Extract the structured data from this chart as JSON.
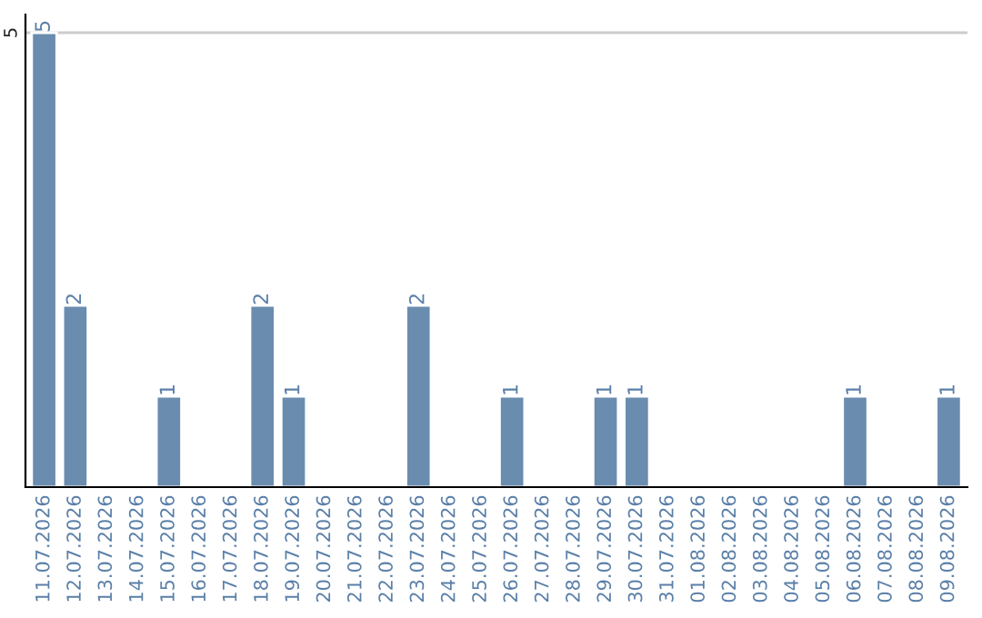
{
  "chart_data": {
    "type": "bar",
    "categories": [
      "11.07.2026",
      "12.07.2026",
      "13.07.2026",
      "14.07.2026",
      "15.07.2026",
      "16.07.2026",
      "17.07.2026",
      "18.07.2026",
      "19.07.2026",
      "20.07.2026",
      "21.07.2026",
      "22.07.2026",
      "23.07.2026",
      "24.07.2026",
      "25.07.2026",
      "26.07.2026",
      "27.07.2026",
      "28.07.2026",
      "29.07.2026",
      "30.07.2026",
      "31.07.2026",
      "01.08.2026",
      "02.08.2026",
      "03.08.2026",
      "04.08.2026",
      "05.08.2026",
      "06.08.2026",
      "07.08.2026",
      "08.08.2026",
      "09.08.2026"
    ],
    "values": [
      5,
      2,
      null,
      null,
      1,
      null,
      null,
      2,
      1,
      null,
      null,
      null,
      2,
      null,
      null,
      1,
      null,
      null,
      1,
      1,
      null,
      null,
      null,
      null,
      null,
      null,
      1,
      null,
      null,
      1
    ],
    "value_labels": [
      "5",
      "2",
      null,
      null,
      "1",
      null,
      null,
      "2",
      "1",
      null,
      null,
      null,
      "2",
      null,
      null,
      "1",
      null,
      null,
      "1",
      "1",
      null,
      null,
      null,
      null,
      null,
      null,
      "1",
      null,
      null,
      "1"
    ],
    "color": "#6a8caf",
    "ylim": [
      0,
      5.2
    ],
    "yticks": [
      5
    ],
    "grid": "y",
    "legend": false
  }
}
